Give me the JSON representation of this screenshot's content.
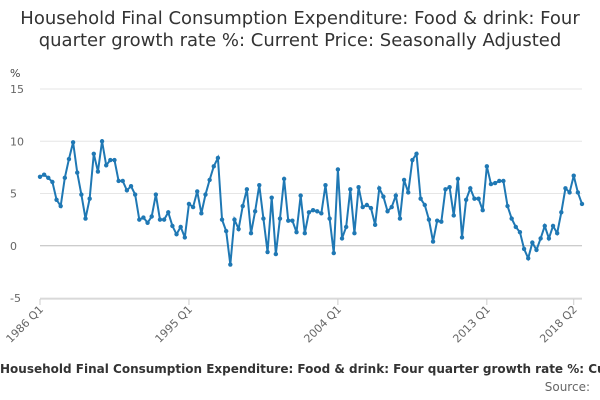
{
  "chart_data": {
    "type": "line",
    "title": "Household Final Consumption Expenditure: Food & drink: Four quarter growth rate %: Current Price: Seasonally Adjusted",
    "ylabel": "%",
    "ylim": [
      -5,
      15
    ],
    "yticks": [
      15,
      10,
      5,
      0,
      -5
    ],
    "xtick_labels": [
      "1986 Q1",
      "1995 Q1",
      "2004 Q1",
      "2013 Q1",
      "2018 Q2"
    ],
    "xtick_index": [
      0,
      36,
      72,
      108,
      129
    ],
    "series": [
      {
        "name": "Household Final Consumption Expenditure: Food & drink: Four quarter growth rate %: Current Price: Seasonally Adjusted",
        "color": "#1f78b4",
        "values": [
          6.6,
          6.8,
          6.5,
          6.1,
          4.4,
          3.8,
          6.5,
          8.3,
          9.9,
          7.0,
          4.9,
          2.6,
          4.5,
          8.8,
          7.1,
          10.0,
          7.7,
          8.2,
          8.2,
          6.2,
          6.2,
          5.3,
          5.7,
          4.9,
          2.5,
          2.7,
          2.2,
          2.8,
          4.9,
          2.5,
          2.5,
          3.2,
          1.9,
          1.1,
          1.8,
          0.8,
          4.0,
          3.7,
          5.2,
          3.1,
          4.9,
          6.3,
          7.6,
          8.4,
          2.5,
          1.4,
          -1.8,
          2.5,
          1.6,
          3.8,
          5.4,
          1.2,
          3.3,
          5.8,
          2.6,
          -0.6,
          4.6,
          -0.8,
          2.6,
          6.4,
          2.4,
          2.4,
          1.3,
          4.8,
          1.2,
          3.2,
          3.4,
          3.3,
          3.1,
          5.8,
          2.6,
          -0.7,
          7.3,
          0.7,
          1.8,
          5.4,
          1.2,
          5.6,
          3.7,
          3.9,
          3.6,
          2.0,
          5.5,
          4.7,
          3.3,
          3.7,
          4.8,
          2.6,
          6.3,
          5.1,
          8.2,
          8.8,
          4.5,
          3.9,
          2.5,
          0.4,
          2.4,
          2.3,
          5.4,
          5.6,
          2.9,
          6.4,
          0.8,
          4.4,
          5.5,
          4.5,
          4.5,
          3.4,
          7.6,
          5.9,
          6.0,
          6.2,
          6.2,
          3.8,
          2.6,
          1.8,
          1.3,
          -0.3,
          -1.2,
          0.3,
          -0.4,
          0.7,
          1.9,
          0.7,
          1.9,
          1.2,
          3.2,
          5.5,
          5.1,
          6.7,
          5.1,
          4.0
        ]
      }
    ],
    "footer_text": "Household Final Consumption Expenditure: Food & drink: Four quarter growth rate %: Current Price: Seasonally Adjusted",
    "source_label": "Source:"
  }
}
